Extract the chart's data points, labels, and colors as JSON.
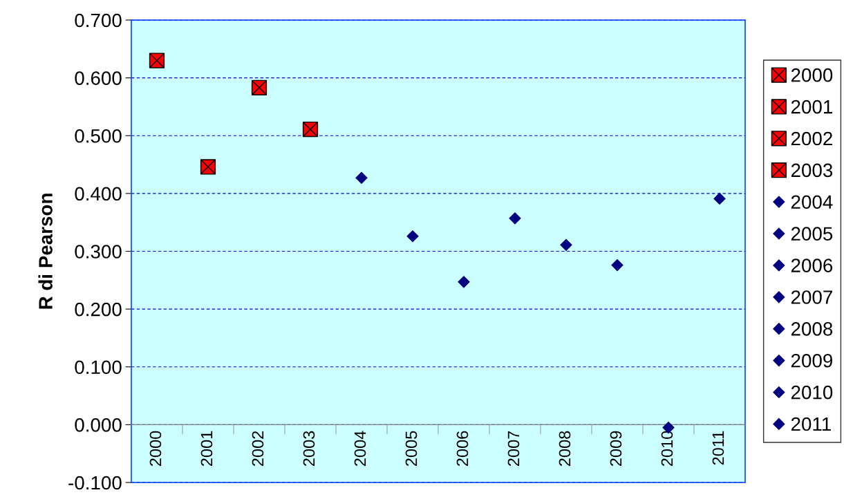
{
  "chart_data": {
    "type": "scatter",
    "ylabel": "R di Pearson",
    "categories": [
      "2000",
      "2001",
      "2002",
      "2003",
      "2004",
      "2005",
      "2006",
      "2007",
      "2008",
      "2009",
      "2010",
      "2011"
    ],
    "series": [
      {
        "name": "2000",
        "color": "#ff0000",
        "marker": "cross",
        "values": [
          0.63,
          null,
          null,
          null,
          null,
          null,
          null,
          null,
          null,
          null,
          null,
          null
        ]
      },
      {
        "name": "2001",
        "color": "#ff0000",
        "marker": "cross",
        "values": [
          null,
          0.446,
          null,
          null,
          null,
          null,
          null,
          null,
          null,
          null,
          null,
          null
        ]
      },
      {
        "name": "2002",
        "color": "#ff0000",
        "marker": "cross",
        "values": [
          null,
          null,
          0.583,
          null,
          null,
          null,
          null,
          null,
          null,
          null,
          null,
          null
        ]
      },
      {
        "name": "2003",
        "color": "#ff0000",
        "marker": "cross",
        "values": [
          null,
          null,
          null,
          0.511,
          null,
          null,
          null,
          null,
          null,
          null,
          null,
          null
        ]
      },
      {
        "name": "2004",
        "color": "#000080",
        "marker": "diamond",
        "values": [
          null,
          null,
          null,
          null,
          0.427,
          null,
          null,
          null,
          null,
          null,
          null,
          null
        ]
      },
      {
        "name": "2005",
        "color": "#000080",
        "marker": "diamond",
        "values": [
          null,
          null,
          null,
          null,
          null,
          0.326,
          null,
          null,
          null,
          null,
          null,
          null
        ]
      },
      {
        "name": "2006",
        "color": "#000080",
        "marker": "diamond",
        "values": [
          null,
          null,
          null,
          null,
          null,
          null,
          0.247,
          null,
          null,
          null,
          null,
          null
        ]
      },
      {
        "name": "2007",
        "color": "#000080",
        "marker": "diamond",
        "values": [
          null,
          null,
          null,
          null,
          null,
          null,
          null,
          0.357,
          null,
          null,
          null,
          null
        ]
      },
      {
        "name": "2008",
        "color": "#000080",
        "marker": "diamond",
        "values": [
          null,
          null,
          null,
          null,
          null,
          null,
          null,
          null,
          0.311,
          null,
          null,
          null
        ]
      },
      {
        "name": "2009",
        "color": "#000080",
        "marker": "diamond",
        "values": [
          null,
          null,
          null,
          null,
          null,
          null,
          null,
          null,
          null,
          0.276,
          null,
          null
        ]
      },
      {
        "name": "2010",
        "color": "#000080",
        "marker": "diamond",
        "values": [
          null,
          null,
          null,
          null,
          null,
          null,
          null,
          null,
          null,
          null,
          -0.005,
          null
        ]
      },
      {
        "name": "2011",
        "color": "#000080",
        "marker": "diamond",
        "values": [
          null,
          null,
          null,
          null,
          null,
          null,
          null,
          null,
          null,
          null,
          null,
          0.391
        ]
      }
    ],
    "ylim": [
      -0.1,
      0.7
    ],
    "yticks": [
      {
        "value": -0.1,
        "label": "-0.100"
      },
      {
        "value": 0.0,
        "label": "0.000"
      },
      {
        "value": 0.1,
        "label": "0.100"
      },
      {
        "value": 0.2,
        "label": "0.200"
      },
      {
        "value": 0.3,
        "label": "0.300"
      },
      {
        "value": 0.4,
        "label": "0.400"
      },
      {
        "value": 0.5,
        "label": "0.500"
      },
      {
        "value": 0.6,
        "label": "0.600"
      },
      {
        "value": 0.7,
        "label": "0.700"
      }
    ],
    "grid": "y",
    "legend": "right"
  }
}
